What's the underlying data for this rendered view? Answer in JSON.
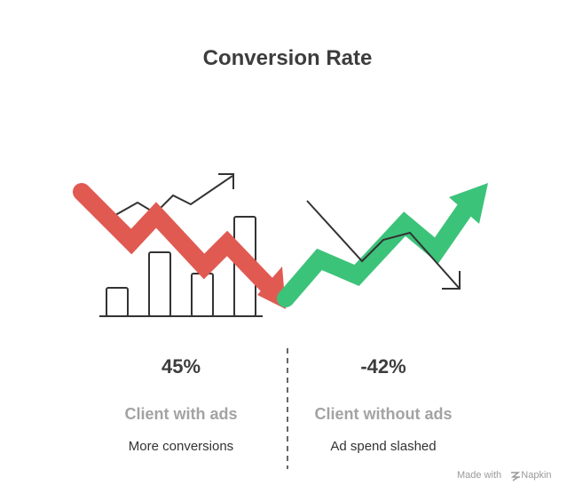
{
  "header": {
    "title": "Conversion Rate"
  },
  "columns": [
    {
      "value": "45%",
      "label": "Client with ads",
      "description": "More conversions"
    },
    {
      "value": "-42%",
      "label": "Client without ads",
      "description": "Ad spend slashed"
    }
  ],
  "footer": {
    "made_with": "Made with",
    "brand": "Napkin"
  }
}
